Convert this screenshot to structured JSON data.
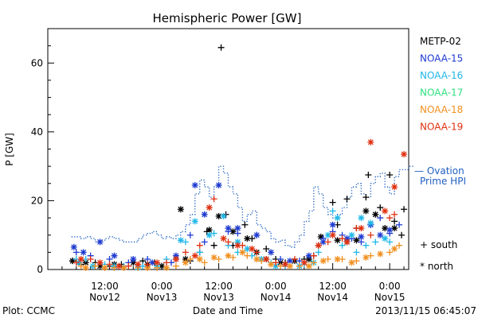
{
  "chart_data": {
    "type": "scatter",
    "title": "Hemispheric Power [GW]",
    "xlabel": "Date and Time",
    "ylabel": "P [GW]",
    "footer_left": "Plot: CCMC",
    "footer_right": "2013/11/15 06:45:07",
    "xlim": [
      0,
      76
    ],
    "ylim": [
      0,
      70
    ],
    "grid": false,
    "legend_position": "right",
    "x_ticks": [
      {
        "x": 12,
        "time": "12:00",
        "date": "Nov12"
      },
      {
        "x": 24,
        "time": "0:00",
        "date": "Nov13"
      },
      {
        "x": 36,
        "time": "12:00",
        "date": "Nov13"
      },
      {
        "x": 48,
        "time": "0:00",
        "date": "Nov14"
      },
      {
        "x": 60,
        "time": "12:00",
        "date": "Nov14"
      },
      {
        "x": 72,
        "time": "0:00",
        "date": "Nov15"
      }
    ],
    "y_ticks": [
      {
        "y": 0,
        "label": "0"
      },
      {
        "y": 20,
        "label": "20"
      },
      {
        "y": 40,
        "label": "40"
      },
      {
        "y": 60,
        "label": "60"
      }
    ],
    "marker_legend": [
      {
        "symbol": "+",
        "label": "south"
      },
      {
        "symbol": "*",
        "label": "north"
      }
    ],
    "ovation_label_lines": [
      "— Ovation",
      "Prime HPI"
    ],
    "ovation_color": "#2060c0",
    "ovation_prime_hpi": {
      "x": [
        5,
        6,
        7,
        8,
        9,
        10,
        11,
        12,
        13,
        14,
        15,
        16,
        17,
        18,
        19,
        20,
        21,
        22,
        23,
        24,
        25,
        26,
        27,
        28,
        29,
        30,
        31,
        32,
        33,
        34,
        35,
        36,
        37,
        38,
        39,
        40,
        41,
        42,
        43,
        44,
        45,
        46,
        47,
        48,
        49,
        50,
        51,
        52,
        53,
        54,
        55,
        56,
        57,
        58,
        59,
        60,
        61,
        62,
        63,
        64,
        65,
        66,
        67,
        68,
        69,
        70,
        71,
        72,
        73,
        74,
        75,
        76
      ],
      "y": [
        9.5,
        9.5,
        9,
        9.5,
        9,
        8,
        8.5,
        9,
        9.5,
        9,
        8.5,
        8,
        8,
        8,
        9,
        10,
        10.5,
        11,
        10,
        9,
        9.5,
        9,
        10,
        11,
        13,
        16,
        22,
        26,
        24,
        21,
        24,
        30,
        28,
        24,
        22,
        18,
        14,
        16,
        17,
        13,
        12,
        11,
        9,
        8,
        8.5,
        7,
        6.5,
        8,
        10,
        14,
        17,
        24,
        22,
        18,
        16,
        15,
        16,
        18,
        21,
        24,
        25,
        22,
        21,
        25,
        27,
        28,
        24,
        22,
        27,
        29,
        29,
        30
      ]
    },
    "series": [
      {
        "name": "METP-02",
        "color": "#000000",
        "south": [
          [
            5.2,
            2.5
          ],
          [
            7,
            1.5
          ],
          [
            10,
            2
          ],
          [
            13,
            1
          ],
          [
            15.5,
            1.5
          ],
          [
            20,
            2.5
          ],
          [
            22.5,
            2
          ],
          [
            27,
            3
          ],
          [
            30,
            2.5
          ],
          [
            32,
            5
          ],
          [
            33.5,
            11
          ],
          [
            35,
            7
          ],
          [
            37.5,
            16
          ],
          [
            36.5,
            64.5
          ],
          [
            39,
            7
          ],
          [
            41.5,
            13
          ],
          [
            43,
            9
          ],
          [
            46,
            6
          ],
          [
            48,
            3
          ],
          [
            50,
            2
          ],
          [
            54,
            3
          ],
          [
            57,
            7
          ],
          [
            60,
            19.5
          ],
          [
            61,
            13
          ],
          [
            63,
            20.5
          ],
          [
            65,
            12
          ],
          [
            67,
            21
          ],
          [
            67.5,
            27.5
          ],
          [
            70,
            18
          ],
          [
            72,
            27.5
          ],
          [
            73,
            14
          ],
          [
            74.5,
            10
          ],
          [
            75,
            17.5
          ]
        ],
        "north": [
          [
            5.2,
            2.5
          ],
          [
            8,
            2
          ],
          [
            11,
            1
          ],
          [
            14,
            1.5
          ],
          [
            18,
            2
          ],
          [
            21,
            1.5
          ],
          [
            24,
            1
          ],
          [
            28,
            17.5
          ],
          [
            29,
            3
          ],
          [
            34,
            11.5
          ],
          [
            36,
            15.5
          ],
          [
            39,
            11
          ],
          [
            42,
            9
          ],
          [
            44,
            5
          ],
          [
            46,
            3
          ],
          [
            49,
            2
          ],
          [
            52,
            2.5
          ],
          [
            55,
            3
          ],
          [
            57.5,
            9.5
          ],
          [
            61,
            8.5
          ],
          [
            63,
            8
          ],
          [
            65,
            8.5
          ],
          [
            67,
            17
          ],
          [
            69,
            16
          ],
          [
            71,
            12
          ],
          [
            73,
            12
          ]
        ]
      },
      {
        "name": "NOAA-15",
        "color": "#1e3ad0",
        "south": [
          [
            6,
            5
          ],
          [
            9,
            4
          ],
          [
            13,
            3
          ],
          [
            17,
            2
          ],
          [
            21,
            3
          ],
          [
            26,
            2
          ],
          [
            30,
            10
          ],
          [
            33,
            8
          ],
          [
            38,
            11
          ],
          [
            40,
            10.5
          ],
          [
            44,
            10
          ],
          [
            49,
            3
          ],
          [
            53,
            2.5
          ],
          [
            56,
            4
          ],
          [
            58,
            9
          ],
          [
            60,
            11
          ],
          [
            62,
            10
          ],
          [
            64,
            9
          ],
          [
            66,
            8
          ],
          [
            68,
            13
          ],
          [
            70,
            15
          ],
          [
            72,
            10.5
          ],
          [
            74,
            13
          ]
        ],
        "north": [
          [
            5.5,
            6.5
          ],
          [
            7.5,
            5
          ],
          [
            11,
            8
          ],
          [
            14,
            4
          ],
          [
            18,
            3
          ],
          [
            22,
            2
          ],
          [
            27,
            4
          ],
          [
            31,
            24.5
          ],
          [
            33,
            16
          ],
          [
            36,
            24.5
          ],
          [
            38,
            12
          ],
          [
            40,
            12
          ],
          [
            44,
            10
          ],
          [
            47,
            5
          ],
          [
            51,
            2.5
          ],
          [
            55,
            4
          ],
          [
            58,
            8
          ],
          [
            60,
            13
          ],
          [
            63,
            9
          ],
          [
            66,
            9.5
          ],
          [
            68,
            13
          ],
          [
            70,
            10
          ],
          [
            72,
            11.5
          ]
        ]
      },
      {
        "name": "NOAA-16",
        "color": "#20b8e8",
        "south": [
          [
            6,
            3
          ],
          [
            8,
            3
          ],
          [
            12,
            1.5
          ],
          [
            16,
            1
          ],
          [
            20,
            1
          ],
          [
            25,
            3
          ],
          [
            29,
            8
          ],
          [
            32,
            5
          ],
          [
            35,
            10.5
          ],
          [
            38,
            7
          ],
          [
            40,
            5
          ],
          [
            43,
            4
          ],
          [
            47,
            2
          ],
          [
            50,
            1
          ],
          [
            54,
            1.5
          ],
          [
            57,
            5
          ],
          [
            60,
            17
          ],
          [
            62,
            7
          ],
          [
            65,
            5
          ],
          [
            67,
            7
          ],
          [
            69,
            8
          ],
          [
            72,
            8
          ]
        ],
        "north": [
          [
            6.5,
            2
          ],
          [
            9.5,
            1
          ],
          [
            14,
            1
          ],
          [
            19,
            0.5
          ],
          [
            23,
            1
          ],
          [
            28,
            8.5
          ],
          [
            31,
            14
          ],
          [
            34,
            10
          ],
          [
            37,
            15.5
          ],
          [
            40,
            8
          ],
          [
            42,
            6
          ],
          [
            45,
            3
          ],
          [
            48,
            1
          ],
          [
            53,
            1
          ],
          [
            56,
            2
          ],
          [
            59,
            10
          ],
          [
            61,
            15
          ],
          [
            64,
            10
          ],
          [
            66,
            15
          ],
          [
            68,
            13.5
          ],
          [
            71,
            9
          ]
        ]
      },
      {
        "name": "NOAA-17",
        "color": "#30e080",
        "south": [],
        "north": []
      },
      {
        "name": "NOAA-18",
        "color": "#f09020",
        "south": [
          [
            7,
            1
          ],
          [
            10,
            1
          ],
          [
            14,
            0.5
          ],
          [
            19,
            0.5
          ],
          [
            23,
            0.5
          ],
          [
            27,
            1
          ],
          [
            30,
            3
          ],
          [
            33,
            2
          ],
          [
            36,
            3
          ],
          [
            39,
            3.5
          ],
          [
            42,
            4
          ],
          [
            45,
            2.5
          ],
          [
            49,
            1
          ],
          [
            53,
            1
          ],
          [
            56,
            2
          ],
          [
            59,
            3
          ],
          [
            62,
            3
          ],
          [
            65,
            2.5
          ],
          [
            68,
            4
          ],
          [
            72,
            5
          ],
          [
            74,
            7
          ]
        ],
        "north": [
          [
            8,
            0.5
          ],
          [
            12,
            0.5
          ],
          [
            16,
            0.5
          ],
          [
            21,
            0.5
          ],
          [
            25,
            0.5
          ],
          [
            29,
            2
          ],
          [
            32,
            3
          ],
          [
            35,
            3.5
          ],
          [
            38,
            4
          ],
          [
            41,
            5
          ],
          [
            44,
            3
          ],
          [
            47,
            1.5
          ],
          [
            51,
            1
          ],
          [
            55,
            1
          ],
          [
            58,
            2.5
          ],
          [
            61,
            3
          ],
          [
            64,
            2
          ],
          [
            67,
            3.5
          ],
          [
            70,
            4.5
          ],
          [
            73,
            6
          ]
        ]
      },
      {
        "name": "NOAA-19",
        "color": "#e03010",
        "south": [
          [
            6,
            2
          ],
          [
            9,
            3
          ],
          [
            13,
            1.5
          ],
          [
            17,
            1
          ],
          [
            21,
            1.5
          ],
          [
            25,
            2
          ],
          [
            29,
            5
          ],
          [
            32,
            7
          ],
          [
            35,
            20.5
          ],
          [
            38,
            8
          ],
          [
            41,
            7
          ],
          [
            44,
            5
          ],
          [
            48,
            2
          ],
          [
            52,
            3
          ],
          [
            56,
            4
          ],
          [
            59,
            8
          ],
          [
            62,
            9
          ],
          [
            65,
            12
          ],
          [
            68,
            10
          ],
          [
            72,
            15
          ],
          [
            73,
            16
          ]
        ],
        "north": [
          [
            7,
            3
          ],
          [
            11,
            2
          ],
          [
            15,
            1
          ],
          [
            19,
            1.5
          ],
          [
            23,
            2
          ],
          [
            27,
            3
          ],
          [
            31,
            4
          ],
          [
            34,
            18
          ],
          [
            37,
            9
          ],
          [
            40,
            7
          ],
          [
            43,
            6
          ],
          [
            46,
            3
          ],
          [
            50,
            1.5
          ],
          [
            54,
            2
          ],
          [
            57,
            7
          ],
          [
            60,
            10
          ],
          [
            63,
            8
          ],
          [
            66,
            12
          ],
          [
            68,
            37
          ],
          [
            71,
            17
          ],
          [
            73,
            24
          ],
          [
            75,
            33.5
          ]
        ]
      }
    ]
  }
}
